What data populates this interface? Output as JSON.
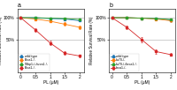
{
  "chart_data": [
    {
      "type": "line",
      "title": "a",
      "x_label": "PL (μM)",
      "y_label": "Relative Survival Rate (%)",
      "x": [
        0,
        0.5,
        1,
        1.5,
        2
      ],
      "series": [
        {
          "name": "wild type",
          "values": [
            100,
            100,
            98,
            97,
            93
          ],
          "errors": [
            1,
            1,
            2,
            2,
            2
          ]
        },
        {
          "name": "Brca1-/-",
          "values": [
            100,
            97,
            92,
            85,
            78
          ],
          "errors": [
            1,
            2,
            3,
            4,
            4
          ]
        },
        {
          "name": "53bp1-/-/brca1-/-",
          "values": [
            100,
            100,
            99,
            98,
            96
          ],
          "errors": [
            1,
            1,
            1,
            2,
            2
          ]
        },
        {
          "name": "Brca1-/-",
          "values": [
            100,
            72,
            42,
            18,
            12
          ],
          "errors": [
            2,
            4,
            5,
            4,
            3
          ]
        }
      ],
      "hlines": [
        50,
        100
      ],
      "xlim": [
        -0.1,
        2.15
      ],
      "ylim": [
        -25,
        120
      ],
      "xticks": [
        0,
        0.5,
        1,
        1.5,
        2
      ],
      "yticks": [
        {
          "value": 50,
          "label": "50%"
        },
        {
          "value": 100,
          "label": "100%"
        }
      ],
      "legend": "lower left",
      "marker": "square"
    },
    {
      "type": "line",
      "title": "b",
      "x_label": "PL (μM)",
      "y_label": "Relative Survival Rate (%)",
      "x": [
        0,
        0.5,
        1,
        1.5,
        2
      ],
      "series": [
        {
          "name": "wild type",
          "values": [
            100,
            100,
            99,
            98,
            95
          ],
          "errors": [
            1,
            1,
            1,
            2,
            2
          ]
        },
        {
          "name": "ku70-/-",
          "values": [
            100,
            100,
            99,
            97,
            93
          ],
          "errors": [
            1,
            1,
            2,
            2,
            3
          ]
        },
        {
          "name": "ku70-/-/brca1-/-",
          "values": [
            100,
            100,
            99,
            98,
            96
          ],
          "errors": [
            1,
            1,
            1,
            2,
            2
          ]
        },
        {
          "name": "brca1-/-",
          "values": [
            100,
            78,
            50,
            22,
            15
          ],
          "errors": [
            2,
            4,
            6,
            5,
            3
          ]
        }
      ],
      "hlines": [
        50,
        100
      ],
      "xlim": [
        -0.1,
        2.15
      ],
      "ylim": [
        -25,
        120
      ],
      "xticks": [
        0,
        0.5,
        1,
        1.5,
        2
      ],
      "yticks": [
        {
          "value": 50,
          "label": "50%"
        },
        {
          "value": 100,
          "label": "100%"
        }
      ],
      "legend": "lower left",
      "marker": "square"
    }
  ]
}
